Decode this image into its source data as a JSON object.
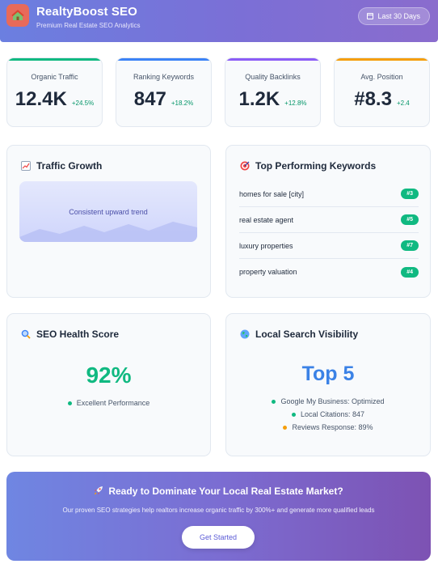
{
  "header": {
    "title": "RealtyBoost SEO",
    "subtitle": "Premium Real Estate SEO Analytics",
    "date_range": "Last 30 Days",
    "logo_icon": "house-icon"
  },
  "stats": [
    {
      "label": "Organic Traffic",
      "value": "12.4K",
      "change": "+24.5%",
      "accent": "#10b981"
    },
    {
      "label": "Ranking Keywords",
      "value": "847",
      "change": "+18.2%",
      "accent": "#3b82f6"
    },
    {
      "label": "Quality Backlinks",
      "value": "1.2K",
      "change": "+12.8%",
      "accent": "#8b5cf6"
    },
    {
      "label": "Avg. Position",
      "value": "#8.3",
      "change": "+2.4",
      "accent": "#f59e0b"
    }
  ],
  "traffic": {
    "title": "Traffic Growth",
    "caption": "Consistent upward trend"
  },
  "keywords": {
    "title": "Top Performing Keywords",
    "items": [
      {
        "keyword": "homes for sale [city]",
        "rank": "#3"
      },
      {
        "keyword": "real estate agent",
        "rank": "#5"
      },
      {
        "keyword": "luxury properties",
        "rank": "#7"
      },
      {
        "keyword": "property valuation",
        "rank": "#4"
      }
    ]
  },
  "health": {
    "title": "SEO Health Score",
    "score": "92%",
    "note": "Excellent Performance"
  },
  "local": {
    "title": "Local Search Visibility",
    "rank": "Top 5",
    "lines": [
      {
        "text": "Google My Business: Optimized",
        "color": "#10b981"
      },
      {
        "text": "Local Citations: 847",
        "color": "#10b981"
      },
      {
        "text": "Reviews Response: 89%",
        "color": "#f59e0b"
      }
    ]
  },
  "cta": {
    "title": "Ready to Dominate Your Local Real Estate Market?",
    "text": "Our proven SEO strategies help realtors increase organic traffic by 300%+ and generate more qualified leads",
    "button": "Get Started"
  }
}
